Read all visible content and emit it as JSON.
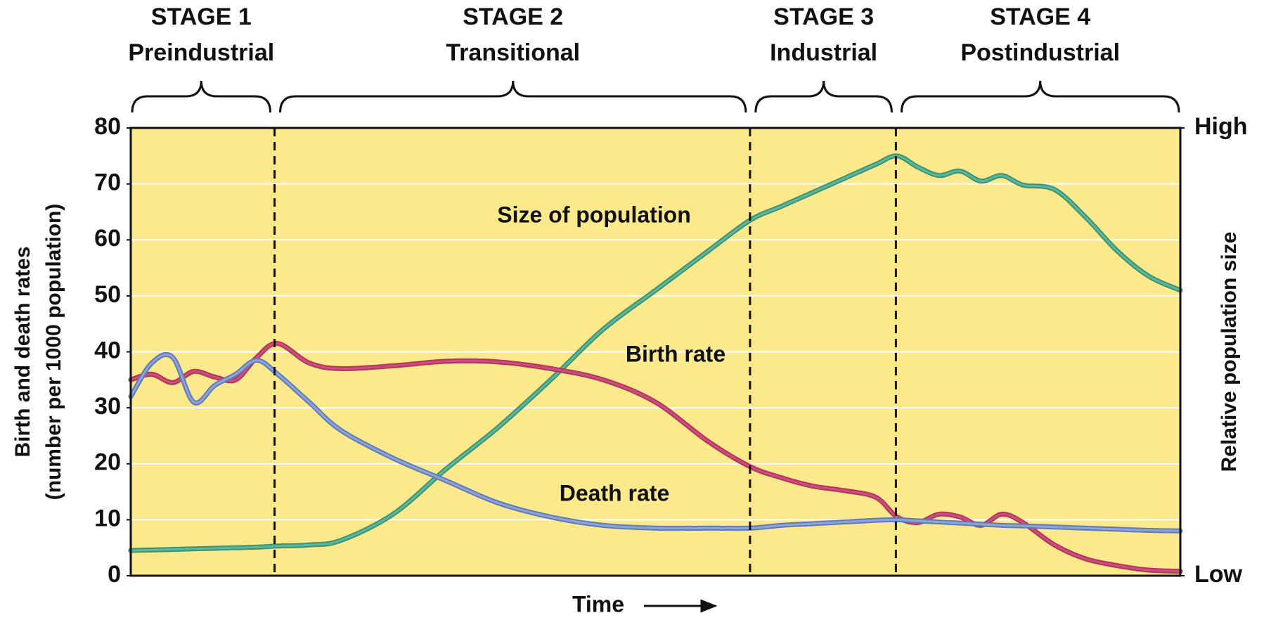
{
  "chart_data": {
    "type": "line",
    "stages": [
      {
        "name": "STAGE 1",
        "label": "Preindustrial"
      },
      {
        "name": "STAGE 2",
        "label": "Transitional"
      },
      {
        "name": "STAGE 3",
        "label": "Industrial"
      },
      {
        "name": "STAGE 4",
        "label": "Postindustrial"
      }
    ],
    "stage_bounds": [
      13.7,
      59,
      72.9
    ],
    "ylabel": [
      "Birth and death rates",
      "(number per 1000 population)"
    ],
    "y2label": "Relative population size",
    "xlabel": "Time",
    "annotations": [
      "Size of population",
      "Birth rate",
      "Death rate"
    ],
    "xlim": [
      0,
      100
    ],
    "ylim": [
      0,
      80
    ],
    "yticks": [
      0,
      10,
      20,
      30,
      40,
      50,
      60,
      70,
      80
    ],
    "y2lim": [
      0,
      80
    ],
    "y2ticks": [
      {
        "value": 0,
        "label": "Low"
      },
      {
        "value": 80,
        "label": "High"
      }
    ],
    "grid": true,
    "background": "#fbe98c",
    "x": [
      0,
      2,
      4,
      6,
      8,
      10,
      12,
      14,
      17,
      20,
      25,
      30,
      35,
      40,
      45,
      50,
      55,
      59,
      62,
      65,
      68,
      71,
      73,
      75,
      77,
      79,
      81,
      83,
      85,
      88,
      91,
      94,
      97,
      100
    ],
    "series": [
      {
        "name": "Size of population",
        "color": "#3f9270",
        "axis": "y2",
        "values": [
          4.5,
          4.6,
          4.7,
          4.8,
          4.9,
          5,
          5.1,
          5.3,
          5.5,
          6.3,
          11,
          19,
          26.5,
          35,
          44,
          51,
          58,
          63.5,
          66,
          68.5,
          71,
          73.5,
          75,
          73,
          71.5,
          72.3,
          70.5,
          71.5,
          69.8,
          69,
          64,
          58,
          53.5,
          51
        ]
      },
      {
        "name": "Birth rate",
        "color": "#b1365a",
        "values": [
          35,
          36,
          34.5,
          36.5,
          35.5,
          35,
          39,
          41.5,
          38,
          37,
          37.5,
          38.3,
          38.2,
          37,
          35,
          31,
          24,
          19.5,
          17.5,
          16,
          15.2,
          14,
          10.5,
          9.5,
          11,
          10.5,
          9,
          11,
          9.5,
          5.5,
          3,
          1.8,
          1,
          0.8
        ]
      },
      {
        "name": "Death rate",
        "color": "#6178bd",
        "values": [
          32,
          38,
          39,
          31,
          34,
          36,
          38.5,
          36,
          31,
          26,
          21,
          17,
          13,
          10.5,
          9,
          8.5,
          8.5,
          8.5,
          9,
          9.3,
          9.6,
          9.9,
          10,
          9.8,
          9.6,
          9.4,
          9.2,
          9,
          8.9,
          8.7,
          8.5,
          8.3,
          8.1,
          8
        ]
      }
    ]
  }
}
